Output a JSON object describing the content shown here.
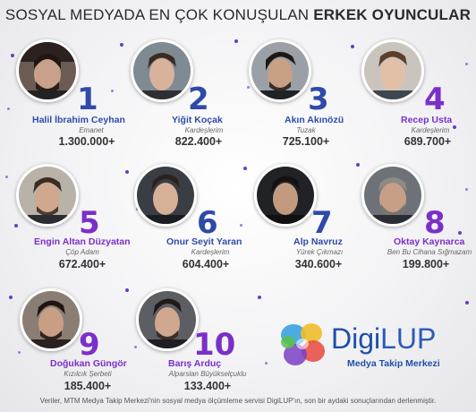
{
  "title": {
    "part1": "SOSYAL MEDYADA EN ÇOK KONUŞULAN ",
    "part2": "ERKEK OYUNCULAR"
  },
  "actors": [
    {
      "rank": "1",
      "name": "Halil İbrahim Ceyhan",
      "show": "Emanet",
      "count": "1.300.000+"
    },
    {
      "rank": "2",
      "name": "Yiğit Koçak",
      "show": "Kardeşlerim",
      "count": "822.400+"
    },
    {
      "rank": "3",
      "name": "Akın Akınözü",
      "show": "Tuzak",
      "count": "725.100+"
    },
    {
      "rank": "4",
      "name": "Recep Usta",
      "show": "Kardeşlerim",
      "count": "689.700+"
    },
    {
      "rank": "5",
      "name": "Engin Altan Düzyatan",
      "show": "Çöp Adam",
      "count": "672.400+"
    },
    {
      "rank": "6",
      "name": "Onur Seyit Yaran",
      "show": "Kardeşlerim",
      "count": "604.400+"
    },
    {
      "rank": "7",
      "name": "Alp Navruz",
      "show": "Yürek Çıkmazı",
      "count": "340.600+"
    },
    {
      "rank": "8",
      "name": "Oktay Kaynarca",
      "show": "Ben Bu Cihana Sığmazam",
      "count": "199.800+"
    },
    {
      "rank": "9",
      "name": "Doğukan Güngör",
      "show": "Kızılcık Şerbeti",
      "count": "185.400+"
    },
    {
      "rank": "10",
      "name": "Barış Arduç",
      "show": "Alparslan Büyükselçuklu",
      "count": "133.400+"
    }
  ],
  "logo": {
    "digi": "Digi",
    "lup": "LUP",
    "subtitle": "Medya Takip Merkezi"
  },
  "footer": "Veriler, MTM Medya Takip Merkezi'nin sosyal medya ölçümleme servisi DigiLUP'ın, son bir aydaki sonuçlarından derlenmiştir.",
  "colors": {
    "rank_blue": "#2f4aa8",
    "rank_purple": "#7b2fc9",
    "logo_blue": "#1e4fa8"
  }
}
